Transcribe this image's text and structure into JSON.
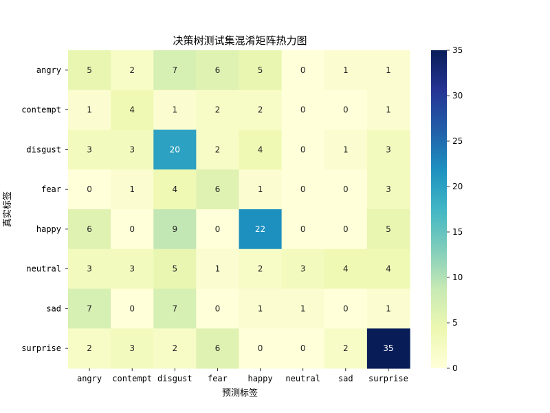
{
  "chart_data": {
    "type": "heatmap",
    "title": "决策树测试集混淆矩阵热力图",
    "xlabel": "预测标签",
    "ylabel": "真实标签",
    "x_categories": [
      "angry",
      "contempt",
      "disgust",
      "fear",
      "happy",
      "neutral",
      "sad",
      "surprise"
    ],
    "y_categories": [
      "angry",
      "contempt",
      "disgust",
      "fear",
      "happy",
      "neutral",
      "sad",
      "surprise"
    ],
    "values": [
      [
        5,
        2,
        7,
        6,
        5,
        0,
        1,
        1
      ],
      [
        1,
        4,
        1,
        2,
        2,
        0,
        0,
        1
      ],
      [
        3,
        3,
        20,
        2,
        4,
        0,
        1,
        3
      ],
      [
        0,
        1,
        4,
        6,
        1,
        0,
        0,
        3
      ],
      [
        6,
        0,
        9,
        0,
        22,
        0,
        0,
        5
      ],
      [
        3,
        3,
        5,
        1,
        2,
        3,
        4,
        4
      ],
      [
        7,
        0,
        7,
        0,
        1,
        1,
        0,
        1
      ],
      [
        2,
        3,
        2,
        6,
        0,
        0,
        2,
        35
      ]
    ],
    "colorbar": {
      "min": 0,
      "max": 35,
      "ticks": [
        0,
        5,
        10,
        15,
        20,
        25,
        30,
        35
      ]
    },
    "colormap": "YlGnBu",
    "grid": false,
    "annotations": true
  }
}
